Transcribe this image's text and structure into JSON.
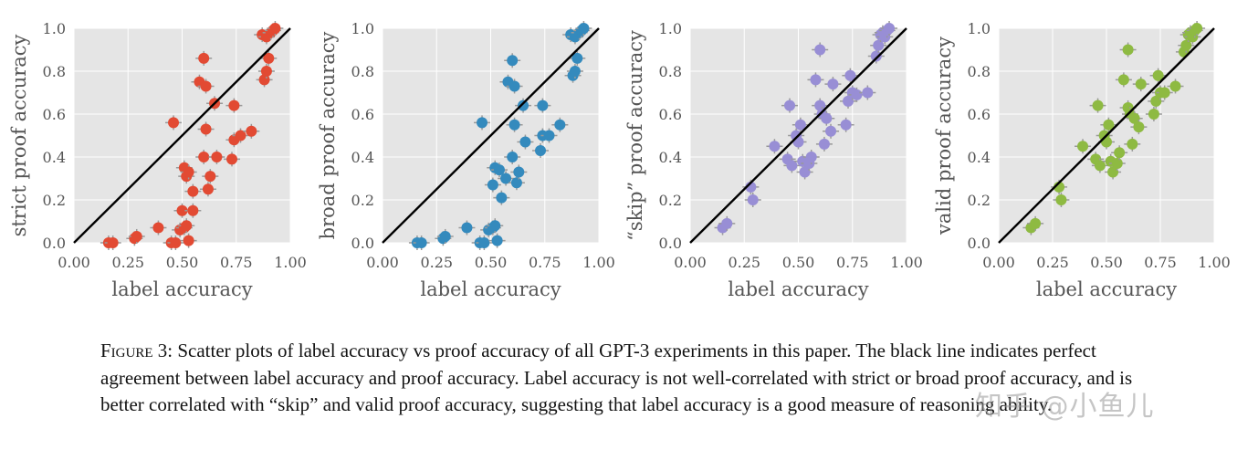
{
  "chart_data": [
    {
      "type": "scatter",
      "ylabel": "strict proof accuracy",
      "xlabel": "label accuracy",
      "xlim": [
        0,
        1
      ],
      "ylim": [
        0,
        1
      ],
      "xticks": [
        "0.00",
        "0.25",
        "0.50",
        "0.75",
        "1.00"
      ],
      "yticks": [
        "0.0",
        "0.2",
        "0.4",
        "0.6",
        "0.8",
        "1.0"
      ],
      "color": "#E24A33",
      "points": [
        [
          0.16,
          0.0
        ],
        [
          0.18,
          0.0
        ],
        [
          0.28,
          0.02
        ],
        [
          0.29,
          0.03
        ],
        [
          0.39,
          0.07
        ],
        [
          0.45,
          0.0
        ],
        [
          0.47,
          0.0
        ],
        [
          0.49,
          0.06
        ],
        [
          0.51,
          0.07
        ],
        [
          0.52,
          0.08
        ],
        [
          0.53,
          0.01
        ],
        [
          0.5,
          0.15
        ],
        [
          0.55,
          0.15
        ],
        [
          0.51,
          0.35
        ],
        [
          0.52,
          0.31
        ],
        [
          0.53,
          0.33
        ],
        [
          0.55,
          0.24
        ],
        [
          0.6,
          0.4
        ],
        [
          0.62,
          0.25
        ],
        [
          0.63,
          0.31
        ],
        [
          0.66,
          0.4
        ],
        [
          0.73,
          0.39
        ],
        [
          0.74,
          0.48
        ],
        [
          0.77,
          0.5
        ],
        [
          0.82,
          0.52
        ],
        [
          0.46,
          0.56
        ],
        [
          0.58,
          0.75
        ],
        [
          0.61,
          0.73
        ],
        [
          0.6,
          0.86
        ],
        [
          0.61,
          0.53
        ],
        [
          0.65,
          0.65
        ],
        [
          0.74,
          0.64
        ],
        [
          0.88,
          0.76
        ],
        [
          0.89,
          0.8
        ],
        [
          0.9,
          0.86
        ],
        [
          0.87,
          0.97
        ],
        [
          0.89,
          0.96
        ],
        [
          0.91,
          0.98
        ],
        [
          0.92,
          0.99
        ],
        [
          0.93,
          1.0
        ]
      ]
    },
    {
      "type": "scatter",
      "ylabel": "broad proof accuracy",
      "xlabel": "label accuracy",
      "xlim": [
        0,
        1
      ],
      "ylim": [
        0,
        1
      ],
      "xticks": [
        "0.00",
        "0.25",
        "0.50",
        "0.75",
        "1.00"
      ],
      "yticks": [
        "0.0",
        "0.2",
        "0.4",
        "0.6",
        "0.8",
        "1.0"
      ],
      "color": "#348ABD",
      "points": [
        [
          0.16,
          0.0
        ],
        [
          0.18,
          0.0
        ],
        [
          0.28,
          0.02
        ],
        [
          0.29,
          0.03
        ],
        [
          0.39,
          0.07
        ],
        [
          0.45,
          0.0
        ],
        [
          0.47,
          0.0
        ],
        [
          0.49,
          0.06
        ],
        [
          0.51,
          0.07
        ],
        [
          0.52,
          0.08
        ],
        [
          0.53,
          0.01
        ],
        [
          0.51,
          0.27
        ],
        [
          0.52,
          0.35
        ],
        [
          0.54,
          0.34
        ],
        [
          0.55,
          0.21
        ],
        [
          0.57,
          0.3
        ],
        [
          0.6,
          0.4
        ],
        [
          0.62,
          0.28
        ],
        [
          0.63,
          0.33
        ],
        [
          0.66,
          0.47
        ],
        [
          0.73,
          0.43
        ],
        [
          0.74,
          0.5
        ],
        [
          0.77,
          0.5
        ],
        [
          0.82,
          0.55
        ],
        [
          0.46,
          0.56
        ],
        [
          0.58,
          0.75
        ],
        [
          0.61,
          0.73
        ],
        [
          0.6,
          0.85
        ],
        [
          0.61,
          0.55
        ],
        [
          0.65,
          0.64
        ],
        [
          0.74,
          0.64
        ],
        [
          0.88,
          0.78
        ],
        [
          0.89,
          0.8
        ],
        [
          0.9,
          0.86
        ],
        [
          0.87,
          0.97
        ],
        [
          0.89,
          0.96
        ],
        [
          0.91,
          0.98
        ],
        [
          0.92,
          0.99
        ],
        [
          0.93,
          1.0
        ]
      ]
    },
    {
      "type": "scatter",
      "ylabel": "“skip” proof accuracy",
      "xlabel": "label accuracy",
      "xlim": [
        0,
        1
      ],
      "ylim": [
        0,
        1
      ],
      "xticks": [
        "0.00",
        "0.25",
        "0.50",
        "0.75",
        "1.00"
      ],
      "yticks": [
        "0.0",
        "0.2",
        "0.4",
        "0.6",
        "0.8",
        "1.0"
      ],
      "color": "#988ED5",
      "points": [
        [
          0.15,
          0.07
        ],
        [
          0.17,
          0.09
        ],
        [
          0.28,
          0.26
        ],
        [
          0.29,
          0.2
        ],
        [
          0.39,
          0.45
        ],
        [
          0.45,
          0.39
        ],
        [
          0.47,
          0.36
        ],
        [
          0.49,
          0.5
        ],
        [
          0.5,
          0.47
        ],
        [
          0.51,
          0.55
        ],
        [
          0.52,
          0.38
        ],
        [
          0.53,
          0.33
        ],
        [
          0.55,
          0.37
        ],
        [
          0.56,
          0.4
        ],
        [
          0.46,
          0.64
        ],
        [
          0.58,
          0.76
        ],
        [
          0.6,
          0.9
        ],
        [
          0.6,
          0.64
        ],
        [
          0.61,
          0.6
        ],
        [
          0.62,
          0.46
        ],
        [
          0.63,
          0.58
        ],
        [
          0.65,
          0.52
        ],
        [
          0.66,
          0.74
        ],
        [
          0.72,
          0.55
        ],
        [
          0.73,
          0.66
        ],
        [
          0.74,
          0.78
        ],
        [
          0.75,
          0.7
        ],
        [
          0.77,
          0.69
        ],
        [
          0.82,
          0.7
        ],
        [
          0.86,
          0.87
        ],
        [
          0.87,
          0.92
        ],
        [
          0.88,
          0.97
        ],
        [
          0.89,
          0.98
        ],
        [
          0.9,
          0.96
        ],
        [
          0.91,
          0.99
        ],
        [
          0.92,
          1.0
        ]
      ]
    },
    {
      "type": "scatter",
      "ylabel": "valid proof accuracy",
      "xlabel": "label accuracy",
      "xlim": [
        0,
        1
      ],
      "ylim": [
        0,
        1
      ],
      "xticks": [
        "0.00",
        "0.25",
        "0.50",
        "0.75",
        "1.00"
      ],
      "yticks": [
        "0.0",
        "0.2",
        "0.4",
        "0.6",
        "0.8",
        "1.0"
      ],
      "color": "#8EBA42",
      "points": [
        [
          0.15,
          0.07
        ],
        [
          0.17,
          0.09
        ],
        [
          0.28,
          0.26
        ],
        [
          0.29,
          0.2
        ],
        [
          0.39,
          0.45
        ],
        [
          0.45,
          0.39
        ],
        [
          0.47,
          0.36
        ],
        [
          0.49,
          0.5
        ],
        [
          0.5,
          0.47
        ],
        [
          0.51,
          0.55
        ],
        [
          0.52,
          0.38
        ],
        [
          0.53,
          0.33
        ],
        [
          0.55,
          0.37
        ],
        [
          0.56,
          0.42
        ],
        [
          0.46,
          0.64
        ],
        [
          0.58,
          0.76
        ],
        [
          0.6,
          0.9
        ],
        [
          0.6,
          0.63
        ],
        [
          0.61,
          0.6
        ],
        [
          0.62,
          0.46
        ],
        [
          0.63,
          0.58
        ],
        [
          0.65,
          0.54
        ],
        [
          0.66,
          0.74
        ],
        [
          0.72,
          0.6
        ],
        [
          0.73,
          0.66
        ],
        [
          0.74,
          0.78
        ],
        [
          0.75,
          0.7
        ],
        [
          0.77,
          0.7
        ],
        [
          0.82,
          0.73
        ],
        [
          0.86,
          0.89
        ],
        [
          0.87,
          0.92
        ],
        [
          0.88,
          0.97
        ],
        [
          0.89,
          0.98
        ],
        [
          0.9,
          0.96
        ],
        [
          0.91,
          0.99
        ],
        [
          0.92,
          1.0
        ]
      ]
    }
  ],
  "caption": {
    "label": "Figure 3:",
    "text": " Scatter plots of label accuracy vs proof accuracy of all GPT-3 experiments in this paper. The black line indicates perfect agreement between label accuracy and proof accuracy. Label accuracy is not well-correlated with strict or broad proof accuracy, and is better correlated with “skip” and valid proof accuracy, suggesting that label accuracy is a good measure of reasoning ability."
  },
  "watermark": "知乎 @小鱼儿"
}
